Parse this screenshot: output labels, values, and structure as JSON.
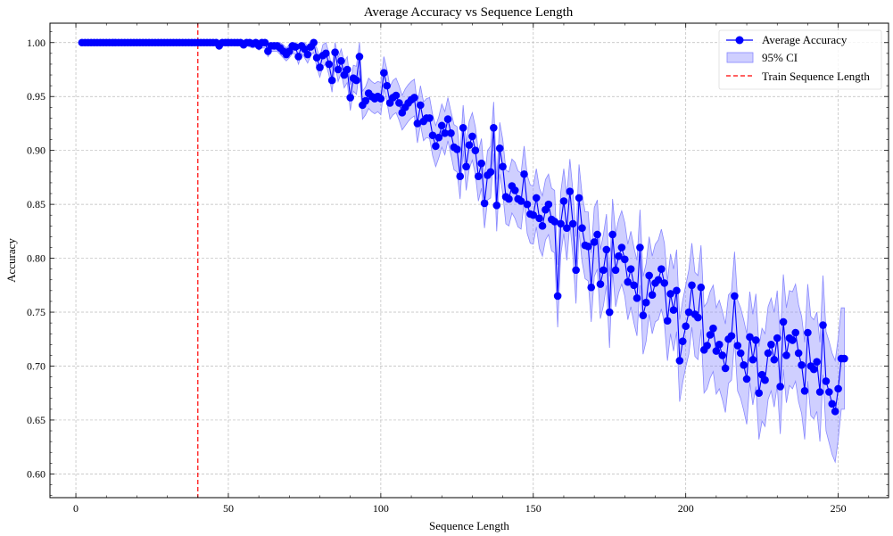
{
  "chart_data": {
    "type": "line",
    "title": "Average Accuracy vs Sequence Length",
    "xlabel": "Sequence Length",
    "ylabel": "Accuracy",
    "xlim": [
      -8.5,
      266.5
    ],
    "ylim": [
      0.578,
      1.018
    ],
    "xticks": [
      0,
      50,
      100,
      150,
      200,
      250
    ],
    "yticks": [
      0.6,
      0.65,
      0.7,
      0.75,
      0.8,
      0.85,
      0.9,
      0.95,
      1.0
    ],
    "grid": true,
    "legend_position": "top-right",
    "colors": {
      "series": "#0000ff",
      "band": "#8888ff",
      "vline": "#ff0000"
    },
    "series": [
      {
        "name": "Average Accuracy",
        "x_start": 2,
        "y": [
          1.0,
          1.0,
          1.0,
          1.0,
          1.0,
          1.0,
          1.0,
          1.0,
          1.0,
          1.0,
          1.0,
          1.0,
          1.0,
          1.0,
          1.0,
          1.0,
          1.0,
          1.0,
          1.0,
          1.0,
          1.0,
          1.0,
          1.0,
          1.0,
          1.0,
          1.0,
          1.0,
          1.0,
          1.0,
          1.0,
          1.0,
          1.0,
          1.0,
          1.0,
          1.0,
          1.0,
          1.0,
          1.0,
          1.0,
          1.0,
          1.0,
          1.0,
          1.0,
          1.0,
          1.0,
          0.997,
          1.0,
          1.0,
          1.0,
          1.0,
          1.0,
          1.0,
          1.0,
          0.998,
          1.0,
          1.0,
          0.999,
          1.0,
          0.997,
          1.0,
          1.0,
          0.992,
          0.997,
          0.997,
          0.997,
          0.995,
          0.992,
          0.989,
          0.992,
          0.997,
          0.996,
          0.987,
          0.997,
          0.994,
          0.989,
          0.996,
          1.0,
          0.986,
          0.977,
          0.988,
          0.99,
          0.98,
          0.965,
          0.991,
          0.975,
          0.983,
          0.97,
          0.975,
          0.949,
          0.967,
          0.965,
          0.987,
          0.942,
          0.946,
          0.953,
          0.95,
          0.948,
          0.95,
          0.948,
          0.972,
          0.96,
          0.944,
          0.949,
          0.951,
          0.944,
          0.935,
          0.94,
          0.944,
          0.947,
          0.949,
          0.925,
          0.942,
          0.927,
          0.93,
          0.93,
          0.914,
          0.904,
          0.912,
          0.923,
          0.916,
          0.929,
          0.916,
          0.903,
          0.901,
          0.876,
          0.921,
          0.885,
          0.905,
          0.913,
          0.9,
          0.876,
          0.888,
          0.851,
          0.877,
          0.88,
          0.921,
          0.849,
          0.902,
          0.885,
          0.857,
          0.855,
          0.867,
          0.863,
          0.855,
          0.853,
          0.878,
          0.85,
          0.841,
          0.84,
          0.856,
          0.837,
          0.83,
          0.845,
          0.85,
          0.836,
          0.834,
          0.765,
          0.832,
          0.853,
          0.828,
          0.862,
          0.832,
          0.789,
          0.856,
          0.828,
          0.812,
          0.811,
          0.773,
          0.815,
          0.822,
          0.776,
          0.789,
          0.808,
          0.75,
          0.822,
          0.789,
          0.802,
          0.81,
          0.799,
          0.778,
          0.79,
          0.775,
          0.763,
          0.81,
          0.747,
          0.759,
          0.784,
          0.766,
          0.777,
          0.78,
          0.79,
          0.777,
          0.742,
          0.767,
          0.752,
          0.77,
          0.705,
          0.723,
          0.737,
          0.75,
          0.775,
          0.748,
          0.745,
          0.773,
          0.715,
          0.719,
          0.729,
          0.735,
          0.714,
          0.72,
          0.71,
          0.698,
          0.725,
          0.728,
          0.765,
          0.719,
          0.712,
          0.701,
          0.688,
          0.727,
          0.706,
          0.724,
          0.675,
          0.692,
          0.687,
          0.712,
          0.72,
          0.706,
          0.726,
          0.681,
          0.741,
          0.71,
          0.726,
          0.724,
          0.731,
          0.712,
          0.701,
          0.677,
          0.731,
          0.7,
          0.697,
          0.704,
          0.676,
          0.738,
          0.686,
          0.676,
          0.665,
          0.658,
          0.679,
          0.707,
          0.707
        ]
      }
    ],
    "band": {
      "name": "95% CI",
      "halfwidth": [
        0,
        0,
        0,
        0,
        0,
        0,
        0,
        0,
        0,
        0,
        0,
        0,
        0,
        0,
        0,
        0,
        0,
        0,
        0,
        0,
        0,
        0,
        0,
        0,
        0,
        0,
        0,
        0,
        0,
        0,
        0,
        0,
        0,
        0,
        0,
        0,
        0,
        0,
        0,
        0,
        0.001,
        0.001,
        0.001,
        0.001,
        0.002,
        0.002,
        0.002,
        0.002,
        0.002,
        0.002,
        0.003,
        0.003,
        0.003,
        0.003,
        0.003,
        0.004,
        0.004,
        0.004,
        0.004,
        0.005,
        0.005,
        0.005,
        0.005,
        0.005,
        0.005,
        0.006,
        0.006,
        0.006,
        0.006,
        0.007,
        0.007,
        0.007,
        0.007,
        0.008,
        0.008,
        0.008,
        0.009,
        0.009,
        0.009,
        0.01,
        0.01,
        0.01,
        0.011,
        0.011,
        0.011,
        0.011,
        0.012,
        0.012,
        0.012,
        0.012,
        0.013,
        0.013,
        0.013,
        0.013,
        0.014,
        0.014,
        0.014,
        0.014,
        0.015,
        0.015,
        0.015,
        0.015,
        0.016,
        0.016,
        0.016,
        0.016,
        0.017,
        0.017,
        0.017,
        0.017,
        0.018,
        0.018,
        0.018,
        0.018,
        0.019,
        0.019,
        0.019,
        0.019,
        0.02,
        0.02,
        0.02,
        0.02,
        0.021,
        0.021,
        0.021,
        0.021,
        0.022,
        0.022,
        0.022,
        0.022,
        0.023,
        0.023,
        0.023,
        0.023,
        0.024,
        0.024,
        0.024,
        0.024,
        0.025,
        0.025,
        0.025,
        0.025,
        0.026,
        0.026,
        0.026,
        0.026,
        0.027,
        0.027,
        0.027,
        0.027,
        0.028,
        0.028,
        0.028,
        0.028,
        0.029,
        0.029,
        0.029,
        0.029,
        0.03,
        0.03,
        0.03,
        0.03,
        0.031,
        0.031,
        0.031,
        0.031,
        0.032,
        0.032,
        0.032,
        0.032,
        0.032,
        0.033,
        0.033,
        0.033,
        0.033,
        0.034,
        0.034,
        0.034,
        0.034,
        0.035,
        0.035,
        0.035,
        0.035,
        0.035,
        0.036,
        0.036,
        0.036,
        0.036,
        0.036,
        0.037,
        0.037,
        0.037,
        0.037,
        0.037,
        0.038,
        0.038,
        0.038,
        0.038,
        0.038,
        0.039,
        0.039,
        0.039,
        0.039,
        0.039,
        0.04,
        0.04,
        0.04,
        0.04,
        0.04,
        0.041,
        0.041,
        0.041,
        0.041,
        0.041,
        0.041,
        0.042,
        0.042,
        0.042,
        0.042,
        0.042,
        0.042,
        0.043,
        0.043,
        0.043,
        0.043,
        0.043,
        0.043,
        0.044,
        0.044,
        0.044,
        0.044,
        0.044,
        0.044,
        0.045,
        0.045,
        0.045,
        0.045,
        0.045,
        0.045,
        0.046,
        0.046,
        0.046,
        0.046,
        0.046,
        0.046,
        0.047,
        0.047,
        0.047,
        0.047,
        0.047,
        0.047,
        0.048,
        0.048,
        0.048,
        0.048,
        0.048,
        0.048,
        0.049,
        0.049
      ]
    },
    "vline": {
      "name": "Train Sequence Length",
      "x": 40
    },
    "legend": [
      "Average Accuracy",
      "95% CI",
      "Train Sequence Length"
    ]
  }
}
